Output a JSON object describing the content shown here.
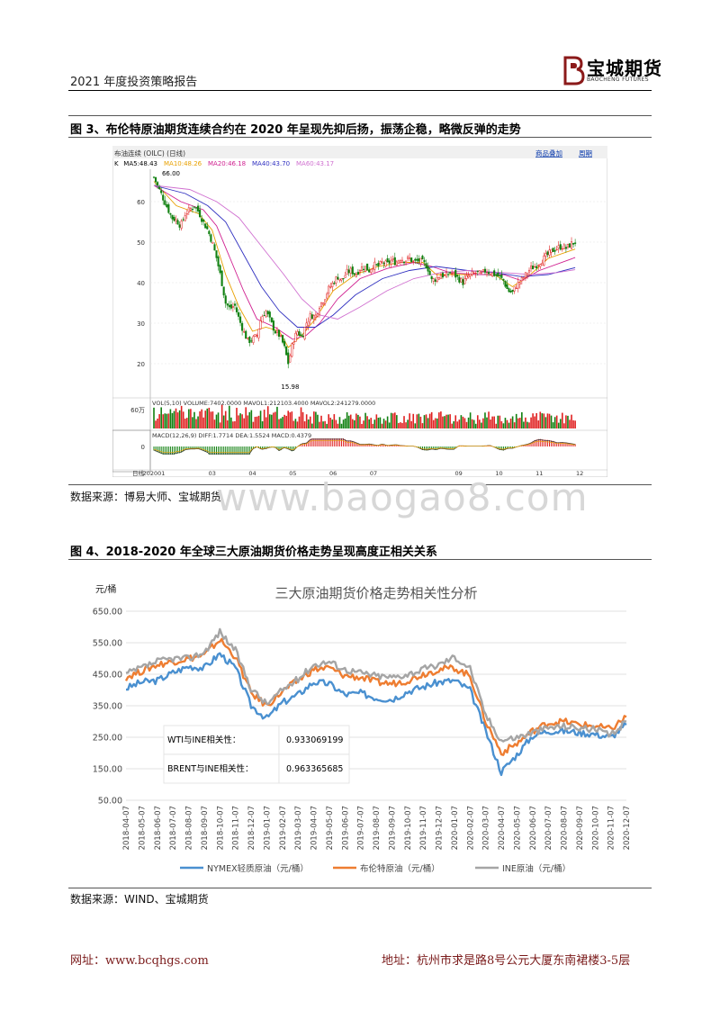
{
  "header": {
    "title": "2021 年度投资策略报告",
    "logo_cn": "宝城期货",
    "logo_en": "BAOCHENG FUTURES"
  },
  "figure3": {
    "title": "图 3、布伦特原油期货连续合约在 2020 年呈现先抑后扬，振荡企稳，略微反弹的走势",
    "source": "数据来源：博易大师、宝城期货",
    "chart_data": {
      "type": "candlestick",
      "instrument": "布油连续 (OILC) (日线)",
      "top_links": [
        "商品叠加",
        "周期"
      ],
      "ma_legend": [
        {
          "label": "K",
          "color": "#000000"
        },
        {
          "label": "MA5:48.43",
          "color": "#000000"
        },
        {
          "label": "MA10:48.26",
          "color": "#e8a000"
        },
        {
          "label": "MA20:46.18",
          "color": "#d02090"
        },
        {
          "label": "MA40:43.70",
          "color": "#3030c0"
        },
        {
          "label": "MA60:43.17",
          "color": "#d070d0"
        }
      ],
      "y_ticks": [
        20,
        30,
        40,
        50,
        60
      ],
      "ylim": [
        12,
        68
      ],
      "annotations": [
        {
          "text": "66.00",
          "x": 0.01,
          "y": 66.0
        },
        {
          "text": "15.98",
          "x": 0.3,
          "y": 15.98
        }
      ],
      "close_path": [
        [
          0.0,
          66.0
        ],
        [
          0.01,
          63.5
        ],
        [
          0.02,
          61.0
        ],
        [
          0.03,
          58.5
        ],
        [
          0.04,
          56.0
        ],
        [
          0.05,
          55.5
        ],
        [
          0.06,
          54.0
        ],
        [
          0.07,
          57.0
        ],
        [
          0.08,
          58.0
        ],
        [
          0.09,
          59.0
        ],
        [
          0.1,
          57.5
        ],
        [
          0.11,
          55.0
        ],
        [
          0.12,
          53.0
        ],
        [
          0.13,
          50.0
        ],
        [
          0.14,
          46.0
        ],
        [
          0.15,
          41.0
        ],
        [
          0.16,
          35.0
        ],
        [
          0.17,
          33.5
        ],
        [
          0.18,
          34.5
        ],
        [
          0.19,
          31.0
        ],
        [
          0.2,
          28.0
        ],
        [
          0.21,
          25.5
        ],
        [
          0.22,
          26.0
        ],
        [
          0.23,
          27.0
        ],
        [
          0.24,
          31.5
        ],
        [
          0.25,
          33.0
        ],
        [
          0.26,
          30.5
        ],
        [
          0.27,
          28.0
        ],
        [
          0.28,
          27.0
        ],
        [
          0.29,
          24.5
        ],
        [
          0.3,
          20.0
        ],
        [
          0.31,
          25.5
        ],
        [
          0.32,
          28.0
        ],
        [
          0.33,
          26.5
        ],
        [
          0.34,
          30.0
        ],
        [
          0.35,
          32.0
        ],
        [
          0.36,
          31.5
        ],
        [
          0.37,
          34.5
        ],
        [
          0.38,
          36.0
        ],
        [
          0.39,
          38.5
        ],
        [
          0.4,
          40.0
        ],
        [
          0.41,
          41.5
        ],
        [
          0.42,
          40.5
        ],
        [
          0.43,
          42.5
        ],
        [
          0.44,
          43.0
        ],
        [
          0.45,
          42.0
        ],
        [
          0.46,
          43.5
        ],
        [
          0.47,
          44.0
        ],
        [
          0.48,
          43.0
        ],
        [
          0.49,
          44.5
        ],
        [
          0.5,
          44.0
        ],
        [
          0.51,
          45.0
        ],
        [
          0.52,
          44.5
        ],
        [
          0.53,
          45.5
        ],
        [
          0.54,
          45.0
        ],
        [
          0.55,
          46.0
        ],
        [
          0.56,
          45.5
        ],
        [
          0.57,
          46.0
        ],
        [
          0.58,
          45.0
        ],
        [
          0.59,
          45.5
        ],
        [
          0.6,
          45.0
        ],
        [
          0.61,
          44.0
        ],
        [
          0.62,
          40.5
        ],
        [
          0.63,
          41.0
        ],
        [
          0.64,
          42.0
        ],
        [
          0.65,
          41.5
        ],
        [
          0.66,
          42.5
        ],
        [
          0.67,
          42.0
        ],
        [
          0.68,
          41.0
        ],
        [
          0.69,
          40.0
        ],
        [
          0.7,
          41.5
        ],
        [
          0.71,
          42.0
        ],
        [
          0.72,
          42.5
        ],
        [
          0.73,
          42.0
        ],
        [
          0.74,
          43.0
        ],
        [
          0.75,
          42.5
        ],
        [
          0.76,
          42.0
        ],
        [
          0.77,
          41.5
        ],
        [
          0.78,
          40.5
        ],
        [
          0.79,
          38.0
        ],
        [
          0.8,
          37.5
        ],
        [
          0.81,
          39.5
        ],
        [
          0.82,
          40.5
        ],
        [
          0.83,
          42.0
        ],
        [
          0.84,
          43.5
        ],
        [
          0.85,
          44.0
        ],
        [
          0.86,
          45.0
        ],
        [
          0.87,
          46.0
        ],
        [
          0.88,
          47.0
        ],
        [
          0.89,
          48.0
        ],
        [
          0.9,
          48.5
        ],
        [
          0.91,
          49.0
        ],
        [
          0.92,
          48.5
        ],
        [
          0.93,
          49.5
        ],
        [
          0.94,
          50.0
        ]
      ],
      "ma_paths": [
        {
          "color": "#e8a000",
          "points": [
            [
              0.0,
              65
            ],
            [
              0.05,
              59
            ],
            [
              0.1,
              57
            ],
            [
              0.13,
              53
            ],
            [
              0.16,
              42
            ],
            [
              0.19,
              34
            ],
            [
              0.22,
              28
            ],
            [
              0.25,
              29
            ],
            [
              0.28,
              28
            ],
            [
              0.3,
              24
            ],
            [
              0.33,
              27
            ],
            [
              0.36,
              31
            ],
            [
              0.4,
              38
            ],
            [
              0.45,
              42
            ],
            [
              0.5,
              44
            ],
            [
              0.55,
              45
            ],
            [
              0.6,
              45
            ],
            [
              0.63,
              42
            ],
            [
              0.68,
              42
            ],
            [
              0.72,
              42
            ],
            [
              0.76,
              42
            ],
            [
              0.8,
              39
            ],
            [
              0.84,
              42
            ],
            [
              0.88,
              46
            ],
            [
              0.94,
              48.3
            ]
          ]
        },
        {
          "color": "#d02090",
          "points": [
            [
              0.0,
              64
            ],
            [
              0.06,
              60
            ],
            [
              0.11,
              58
            ],
            [
              0.14,
              54
            ],
            [
              0.17,
              46
            ],
            [
              0.2,
              38
            ],
            [
              0.23,
              31
            ],
            [
              0.27,
              29
            ],
            [
              0.31,
              26
            ],
            [
              0.34,
              27
            ],
            [
              0.37,
              30
            ],
            [
              0.41,
              36
            ],
            [
              0.46,
              41
            ],
            [
              0.52,
              43.5
            ],
            [
              0.58,
              45
            ],
            [
              0.62,
              44
            ],
            [
              0.66,
              42.5
            ],
            [
              0.72,
              42
            ],
            [
              0.78,
              42
            ],
            [
              0.82,
              40.5
            ],
            [
              0.86,
              43
            ],
            [
              0.94,
              46.2
            ]
          ]
        },
        {
          "color": "#3030c0",
          "points": [
            [
              0.0,
              64
            ],
            [
              0.07,
              62
            ],
            [
              0.12,
              59
            ],
            [
              0.16,
              55
            ],
            [
              0.2,
              47
            ],
            [
              0.24,
              39
            ],
            [
              0.28,
              33
            ],
            [
              0.32,
              29
            ],
            [
              0.36,
              29
            ],
            [
              0.4,
              32
            ],
            [
              0.45,
              37
            ],
            [
              0.51,
              41
            ],
            [
              0.57,
              43
            ],
            [
              0.63,
              44
            ],
            [
              0.7,
              43
            ],
            [
              0.76,
              42.5
            ],
            [
              0.82,
              41.5
            ],
            [
              0.88,
              42
            ],
            [
              0.94,
              43.7
            ]
          ]
        },
        {
          "color": "#d070d0",
          "points": [
            [
              0.0,
              64
            ],
            [
              0.08,
              63
            ],
            [
              0.14,
              60
            ],
            [
              0.19,
              56
            ],
            [
              0.24,
              49
            ],
            [
              0.29,
              42
            ],
            [
              0.33,
              36
            ],
            [
              0.37,
              32
            ],
            [
              0.41,
              31
            ],
            [
              0.46,
              34
            ],
            [
              0.52,
              38
            ],
            [
              0.58,
              41
            ],
            [
              0.64,
              42.5
            ],
            [
              0.7,
              43
            ],
            [
              0.78,
              42.5
            ],
            [
              0.84,
              42
            ],
            [
              0.9,
              42.5
            ],
            [
              0.94,
              43.2
            ]
          ]
        }
      ],
      "volume_legend": "VOL(5,10) VOLUME:7402.0000 MAVOL1:212103.4000 MAVOL2:241279.0000",
      "volume_tick": "60万",
      "macd_legend": "MACD(12,26,9) DIFF:1.7714 DEA:1.5524 MACD:0.4379",
      "macd_tick": "0",
      "x_labels": [
        {
          "label": "日线",
          "x": -0.02
        },
        {
          "label": "202001",
          "x": 0.0
        },
        {
          "label": "03",
          "x": 0.13
        },
        {
          "label": "04",
          "x": 0.22
        },
        {
          "label": "05",
          "x": 0.31
        },
        {
          "label": "06",
          "x": 0.4
        },
        {
          "label": "07",
          "x": 0.49
        },
        {
          "label": "09",
          "x": 0.68
        },
        {
          "label": "10",
          "x": 0.77
        },
        {
          "label": "11",
          "x": 0.86
        },
        {
          "label": "12",
          "x": 0.95
        }
      ]
    }
  },
  "figure4": {
    "title": "图 4、2018-2020 年全球三大原油期货价格走势呈现高度正相关关系",
    "source": "数据来源：WIND、宝城期货",
    "chart_data": {
      "type": "line",
      "title": "三大原油期货价格走势相关性分析",
      "ylabel": "元/桶",
      "ylim": [
        50,
        650
      ],
      "y_ticks": [
        "650.00",
        "550.00",
        "450.00",
        "350.00",
        "250.00",
        "150.00",
        "50.00"
      ],
      "categories": [
        "2018-04-07",
        "2018-05-07",
        "2018-06-07",
        "2018-07-07",
        "2018-08-07",
        "2018-09-07",
        "2018-10-07",
        "2018-11-07",
        "2018-12-07",
        "2019-01-07",
        "2019-02-07",
        "2019-03-07",
        "2019-04-07",
        "2019-05-07",
        "2019-06-07",
        "2019-07-07",
        "2019-08-07",
        "2019-09-07",
        "2019-10-07",
        "2019-11-07",
        "2019-12-07",
        "2020-01-07",
        "2020-02-07",
        "2020-03-07",
        "2020-04-07",
        "2020-05-07",
        "2020-06-07",
        "2020-07-07",
        "2020-08-07",
        "2020-09-07",
        "2020-10-07",
        "2020-11-07",
        "2020-12-07"
      ],
      "series": [
        {
          "name": "NYMEX轻质原油（元/桶）",
          "color": "#4a90d0",
          "values": [
            405,
            425,
            430,
            455,
            475,
            470,
            515,
            470,
            350,
            310,
            360,
            385,
            425,
            420,
            385,
            390,
            375,
            370,
            395,
            410,
            425,
            430,
            400,
            270,
            140,
            195,
            255,
            270,
            270,
            265,
            260,
            250,
            290
          ]
        },
        {
          "name": "布伦特原油（元/桶）",
          "color": "#ee7d31",
          "values": [
            440,
            460,
            480,
            490,
            500,
            510,
            560,
            505,
            390,
            350,
            395,
            430,
            465,
            470,
            445,
            440,
            425,
            420,
            430,
            450,
            465,
            470,
            445,
            300,
            200,
            230,
            270,
            295,
            300,
            290,
            285,
            275,
            315
          ]
        },
        {
          "name": "INE原油（元/桶）",
          "color": "#a5a5a5",
          "values": [
            450,
            470,
            490,
            500,
            500,
            520,
            585,
            525,
            405,
            355,
            400,
            435,
            480,
            490,
            465,
            455,
            445,
            440,
            450,
            465,
            480,
            505,
            470,
            320,
            240,
            250,
            265,
            280,
            285,
            280,
            275,
            255,
            300
          ]
        }
      ],
      "corr_table": [
        {
          "label": "WTI与INE相关性：",
          "value": "0.933069199"
        },
        {
          "label": "BRENT与INE相关性：",
          "value": "0.963365685"
        }
      ]
    }
  },
  "watermark": "www.baogao8.com",
  "footer": {
    "left": "网址：www.bcqhgs.com",
    "right": "地址：杭州市求是路8号公元大厦东南裙楼3-5层"
  }
}
